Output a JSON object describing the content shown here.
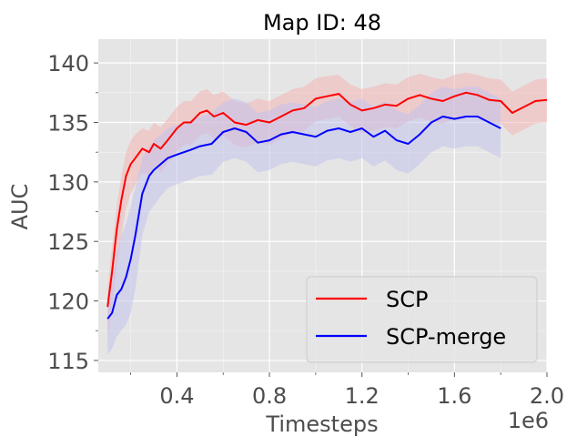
{
  "chart_data": {
    "type": "line",
    "title": "Map ID: 48",
    "xlabel": "Timesteps",
    "ylabel": "AUC",
    "x_multiplier_label": "1e6",
    "xlim": [
      0.06,
      2.0
    ],
    "ylim": [
      114,
      142
    ],
    "xticks": [
      0.4,
      0.8,
      1.2,
      1.6,
      2.0
    ],
    "xtick_labels": [
      "0.4",
      "0.8",
      "1.2",
      "1.6",
      "2.0"
    ],
    "yticks": [
      115,
      120,
      125,
      130,
      135,
      140
    ],
    "ytick_labels": [
      "115",
      "120",
      "125",
      "130",
      "135",
      "140"
    ],
    "grid": true,
    "legend_position": "lower-right",
    "series": [
      {
        "name": "SCP",
        "color": "#ff0000",
        "band_color": "#f4b6b6",
        "x": [
          0.1,
          0.12,
          0.14,
          0.16,
          0.18,
          0.2,
          0.22,
          0.25,
          0.28,
          0.3,
          0.33,
          0.36,
          0.4,
          0.43,
          0.46,
          0.5,
          0.53,
          0.56,
          0.6,
          0.65,
          0.7,
          0.75,
          0.8,
          0.85,
          0.9,
          0.95,
          1.0,
          1.05,
          1.1,
          1.15,
          1.2,
          1.25,
          1.3,
          1.35,
          1.4,
          1.45,
          1.5,
          1.55,
          1.6,
          1.65,
          1.7,
          1.75,
          1.8,
          1.85,
          1.9,
          1.95,
          2.0
        ],
        "values": [
          119.5,
          122.5,
          126.0,
          128.5,
          130.5,
          131.5,
          132.0,
          132.8,
          132.5,
          133.2,
          132.8,
          133.5,
          134.5,
          135.0,
          135.0,
          135.8,
          136.0,
          135.5,
          135.8,
          135.0,
          134.8,
          135.2,
          135.0,
          135.5,
          136.0,
          136.2,
          137.0,
          137.2,
          137.4,
          136.5,
          136.0,
          136.2,
          136.5,
          136.4,
          137.0,
          137.3,
          137.0,
          136.8,
          137.2,
          137.5,
          137.3,
          136.9,
          136.8,
          135.8,
          136.3,
          136.8,
          136.9
        ],
        "upper": [
          121.0,
          124.5,
          128.0,
          130.5,
          132.5,
          133.5,
          134.0,
          134.5,
          134.3,
          135.0,
          134.6,
          135.3,
          136.3,
          136.8,
          136.8,
          137.6,
          137.8,
          137.3,
          137.6,
          136.8,
          136.6,
          137.0,
          136.8,
          137.3,
          137.8,
          138.0,
          138.7,
          138.9,
          139.0,
          138.2,
          137.8,
          138.0,
          138.3,
          138.2,
          138.8,
          139.1,
          138.8,
          138.6,
          139.0,
          139.2,
          139.0,
          138.7,
          138.6,
          137.6,
          138.1,
          138.6,
          138.7
        ],
        "lower": [
          117.0,
          119.5,
          123.0,
          125.5,
          127.8,
          129.0,
          129.8,
          130.8,
          130.5,
          131.3,
          130.8,
          131.6,
          132.6,
          133.1,
          133.1,
          133.9,
          134.1,
          133.6,
          133.9,
          133.1,
          132.9,
          133.3,
          133.1,
          133.6,
          134.1,
          134.3,
          135.1,
          135.3,
          135.5,
          134.7,
          134.1,
          134.3,
          134.6,
          134.5,
          135.1,
          135.4,
          135.1,
          134.9,
          135.3,
          135.6,
          135.4,
          135.0,
          134.9,
          133.9,
          134.4,
          134.9,
          135.0
        ]
      },
      {
        "name": "SCP-merge",
        "color": "#0000ff",
        "band_color": "#c2c2ec",
        "x": [
          0.1,
          0.12,
          0.14,
          0.16,
          0.18,
          0.2,
          0.22,
          0.25,
          0.28,
          0.3,
          0.33,
          0.36,
          0.4,
          0.43,
          0.46,
          0.5,
          0.55,
          0.6,
          0.65,
          0.7,
          0.75,
          0.8,
          0.85,
          0.9,
          0.95,
          1.0,
          1.05,
          1.1,
          1.15,
          1.2,
          1.25,
          1.3,
          1.35,
          1.4,
          1.45,
          1.5,
          1.55,
          1.6,
          1.65,
          1.7,
          1.75,
          1.8
        ],
        "values": [
          118.5,
          119.0,
          120.5,
          121.0,
          122.0,
          123.5,
          125.5,
          129.0,
          130.5,
          131.0,
          131.5,
          132.0,
          132.3,
          132.5,
          132.7,
          133.0,
          133.2,
          134.2,
          134.5,
          134.2,
          133.3,
          133.5,
          134.0,
          134.2,
          134.0,
          133.8,
          134.3,
          134.5,
          134.2,
          134.5,
          133.8,
          134.3,
          133.5,
          133.2,
          134.0,
          135.0,
          135.5,
          135.3,
          135.5,
          135.5,
          135.0,
          134.5
        ],
        "upper": [
          120.5,
          122.0,
          124.0,
          125.5,
          126.5,
          128.0,
          129.5,
          132.0,
          133.0,
          133.5,
          134.0,
          134.5,
          134.8,
          135.0,
          135.2,
          135.5,
          135.8,
          136.7,
          137.0,
          136.7,
          135.8,
          136.0,
          136.5,
          136.7,
          136.5,
          136.3,
          136.8,
          137.0,
          136.7,
          137.0,
          136.3,
          136.8,
          136.0,
          135.7,
          136.5,
          137.5,
          138.0,
          137.8,
          138.0,
          138.0,
          137.5,
          137.0
        ],
        "lower": [
          115.5,
          116.0,
          117.0,
          117.5,
          118.0,
          119.0,
          121.0,
          125.5,
          127.5,
          128.0,
          128.8,
          129.5,
          129.8,
          130.0,
          130.2,
          130.5,
          130.6,
          131.7,
          132.0,
          131.7,
          130.8,
          131.0,
          131.5,
          131.7,
          131.5,
          131.3,
          131.8,
          132.0,
          131.7,
          132.0,
          131.3,
          131.8,
          131.0,
          130.7,
          131.5,
          132.5,
          133.0,
          132.8,
          133.0,
          133.0,
          132.5,
          132.0
        ]
      }
    ]
  }
}
